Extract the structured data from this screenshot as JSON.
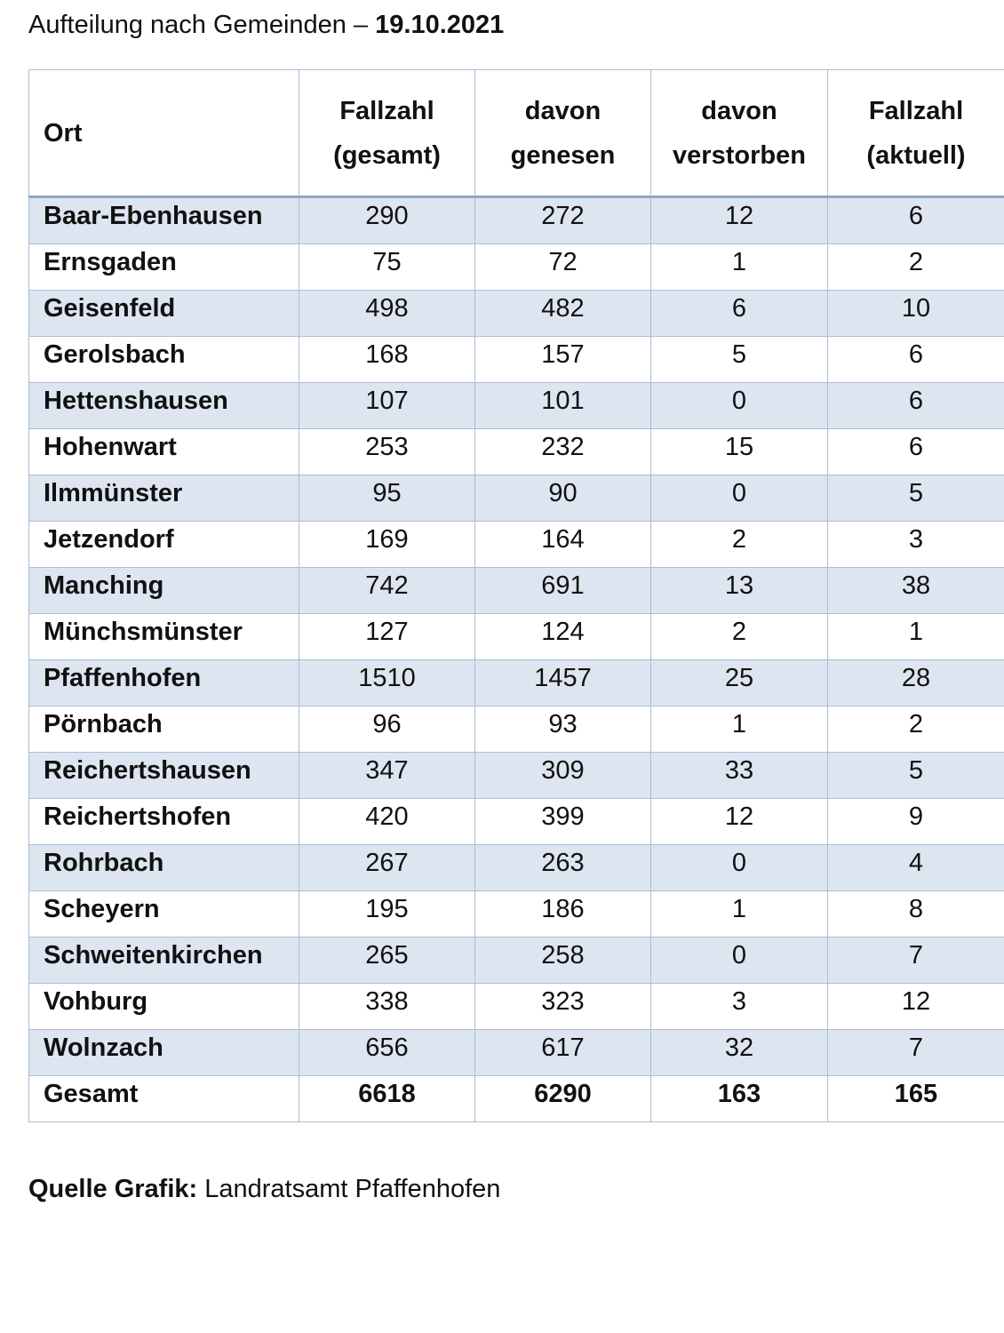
{
  "title": {
    "text": "Aufteilung nach Gemeinden – ",
    "date": "19.10.2021"
  },
  "table": {
    "headers": [
      {
        "line1": "",
        "line2": "Ort"
      },
      {
        "line1": "Fallzahl",
        "line2": "(gesamt)"
      },
      {
        "line1": "davon",
        "line2": "genesen"
      },
      {
        "line1": "davon",
        "line2": "verstorben"
      },
      {
        "line1": "Fallzahl",
        "line2": "(aktuell)"
      }
    ],
    "rows": [
      [
        "Baar-Ebenhausen",
        "290",
        "272",
        "12",
        "6"
      ],
      [
        "Ernsgaden",
        "75",
        "72",
        "1",
        "2"
      ],
      [
        "Geisenfeld",
        "498",
        "482",
        "6",
        "10"
      ],
      [
        "Gerolsbach",
        "168",
        "157",
        "5",
        "6"
      ],
      [
        "Hettenshausen",
        "107",
        "101",
        "0",
        "6"
      ],
      [
        "Hohenwart",
        "253",
        "232",
        "15",
        "6"
      ],
      [
        "Ilmmünster",
        "95",
        "90",
        "0",
        "5"
      ],
      [
        "Jetzendorf",
        "169",
        "164",
        "2",
        "3"
      ],
      [
        "Manching",
        "742",
        "691",
        "13",
        "38"
      ],
      [
        "Münchsmünster",
        "127",
        "124",
        "2",
        "1"
      ],
      [
        "Pfaffenhofen",
        "1510",
        "1457",
        "25",
        "28"
      ],
      [
        "Pörnbach",
        "96",
        "93",
        "1",
        "2"
      ],
      [
        "Reichertshausen",
        "347",
        "309",
        "33",
        "5"
      ],
      [
        "Reichertshofen",
        "420",
        "399",
        "12",
        "9"
      ],
      [
        "Rohrbach",
        "267",
        "263",
        "0",
        "4"
      ],
      [
        "Scheyern",
        "195",
        "186",
        "1",
        "8"
      ],
      [
        "Schweitenkirchen",
        "265",
        "258",
        "0",
        "7"
      ],
      [
        "Vohburg",
        "338",
        "323",
        "3",
        "12"
      ],
      [
        "Wolnzach",
        "656",
        "617",
        "32",
        "7"
      ]
    ],
    "total": [
      "Gesamt",
      "6618",
      "6290",
      "163",
      "165"
    ]
  },
  "source": {
    "label": "Quelle Grafik:",
    "text": " Landratsamt Pfaffenhofen"
  },
  "colors": {
    "row_shade": "#dde5f1",
    "grid": "#aebdd2",
    "header_rule": "#8ea6c7"
  }
}
